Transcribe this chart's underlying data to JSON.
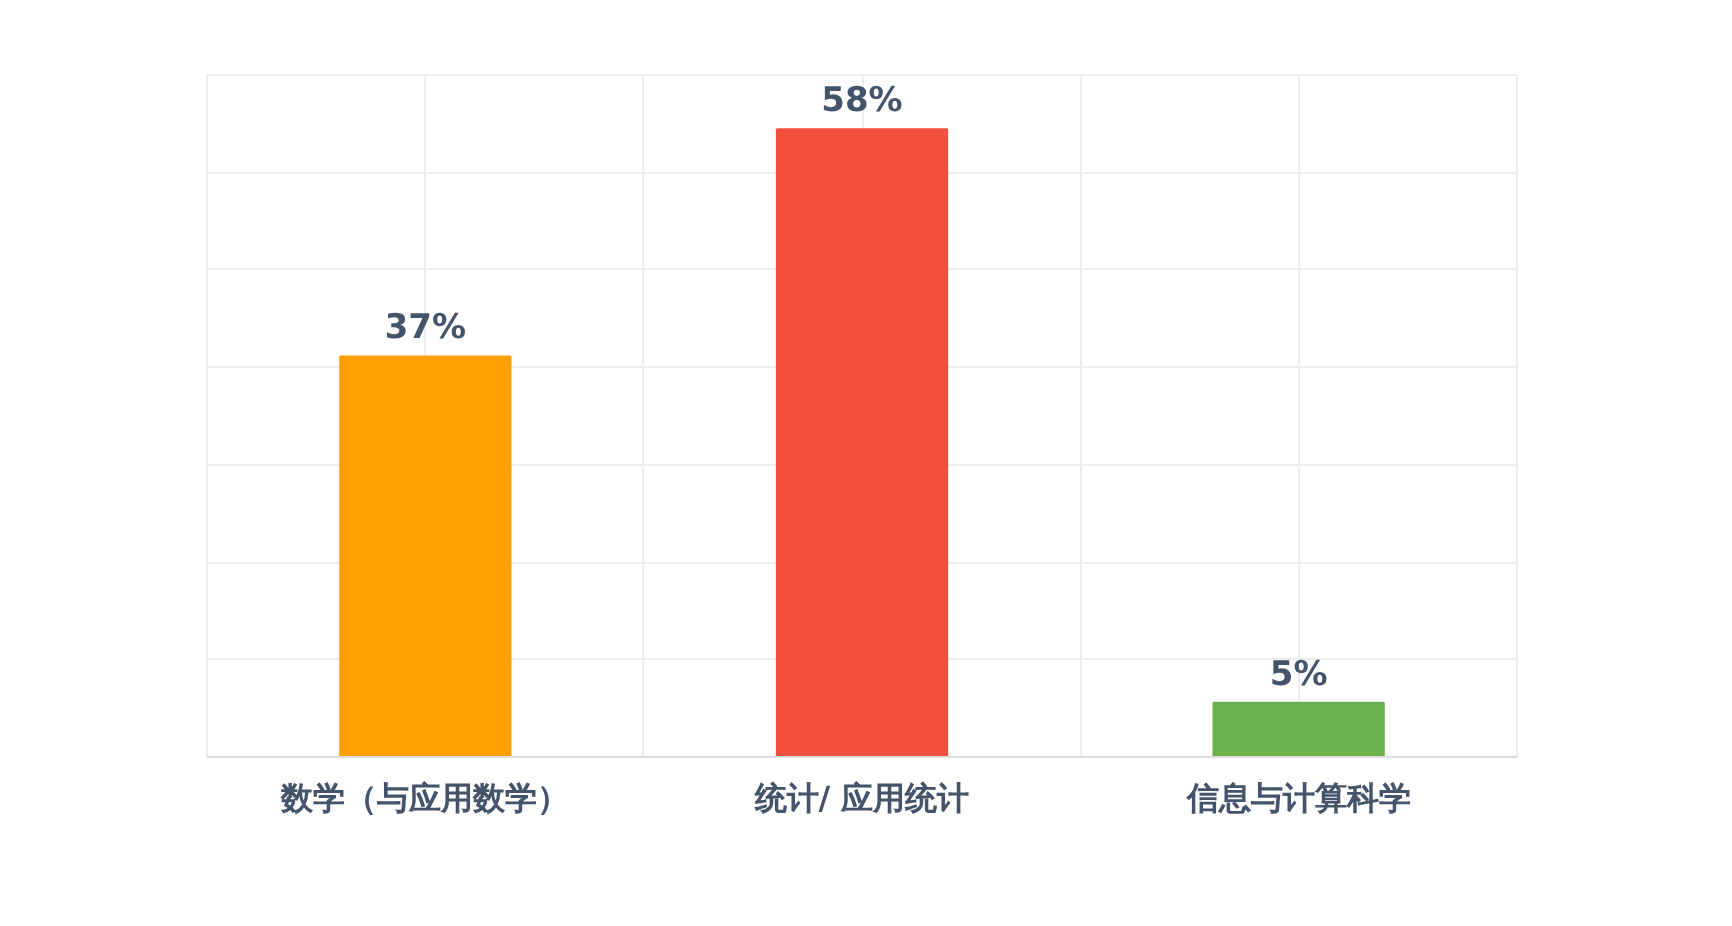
{
  "chart_data": {
    "type": "bar",
    "categories": [
      "数学（与应用数学）",
      "统计/ 应用统计",
      "信息与计算科学"
    ],
    "values": [
      37,
      58,
      5
    ],
    "colors": [
      "#ffa000",
      "#f0503c",
      "#6ab04c"
    ],
    "value_labels": [
      "37%",
      "58%",
      "5%"
    ],
    "ylim": [
      0,
      63
    ],
    "yticks": [
      {
        "value": 0,
        "label": null
      },
      {
        "value": 9,
        "label": null
      },
      {
        "value": 18,
        "label": null
      },
      {
        "value": 27,
        "label": null
      },
      {
        "value": 36,
        "label": null
      },
      {
        "value": 45,
        "label": null
      },
      {
        "value": 54,
        "label": null
      },
      {
        "value": 63,
        "label": null
      }
    ],
    "tick_labels": "x",
    "grid": true
  }
}
